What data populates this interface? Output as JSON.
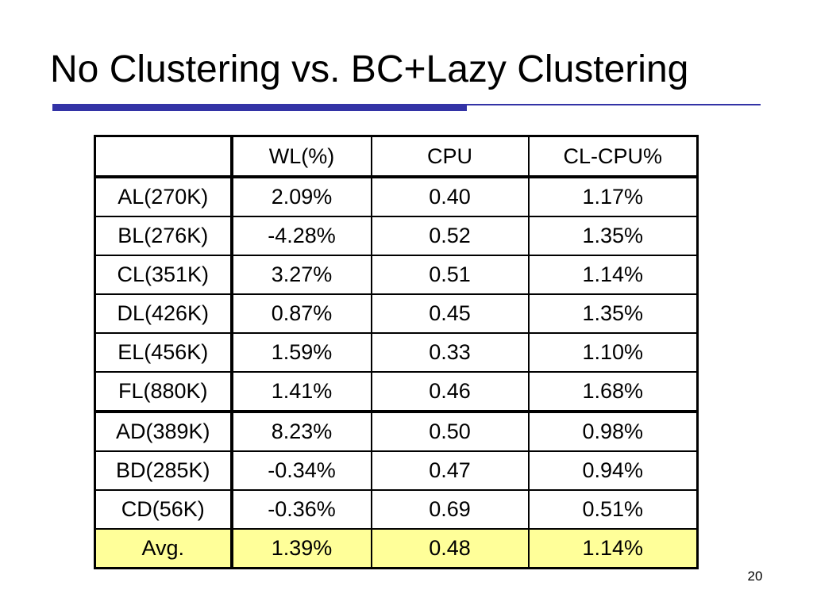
{
  "slide": {
    "title": "No Clustering vs. BC+Lazy Clustering",
    "page_number": "20",
    "accent_color": "#3333a6",
    "highlight_color": "#ffff99"
  },
  "table": {
    "headers": [
      "",
      "WL(%)",
      "CPU",
      "CL-CPU%"
    ],
    "rows": [
      {
        "name": "AL(270K)",
        "wl": "2.09%",
        "cpu": "0.40",
        "cl_cpu": "1.17%"
      },
      {
        "name": "BL(276K)",
        "wl": "-4.28%",
        "cpu": "0.52",
        "cl_cpu": "1.35%"
      },
      {
        "name": "CL(351K)",
        "wl": "3.27%",
        "cpu": "0.51",
        "cl_cpu": "1.14%"
      },
      {
        "name": "DL(426K)",
        "wl": "0.87%",
        "cpu": "0.45",
        "cl_cpu": "1.35%"
      },
      {
        "name": "EL(456K)",
        "wl": "1.59%",
        "cpu": "0.33",
        "cl_cpu": "1.10%"
      },
      {
        "name": "FL(880K)",
        "wl": "1.41%",
        "cpu": "0.46",
        "cl_cpu": "1.68%"
      },
      {
        "name": "AD(389K)",
        "wl": "8.23%",
        "cpu": "0.50",
        "cl_cpu": "0.98%"
      },
      {
        "name": "BD(285K)",
        "wl": "-0.34%",
        "cpu": "0.47",
        "cl_cpu": "0.94%"
      },
      {
        "name": "CD(56K)",
        "wl": "-0.36%",
        "cpu": "0.69",
        "cl_cpu": "0.51%"
      }
    ],
    "average": {
      "name": "Avg.",
      "wl": "1.39%",
      "cpu": "0.48",
      "cl_cpu": "1.14%"
    }
  }
}
